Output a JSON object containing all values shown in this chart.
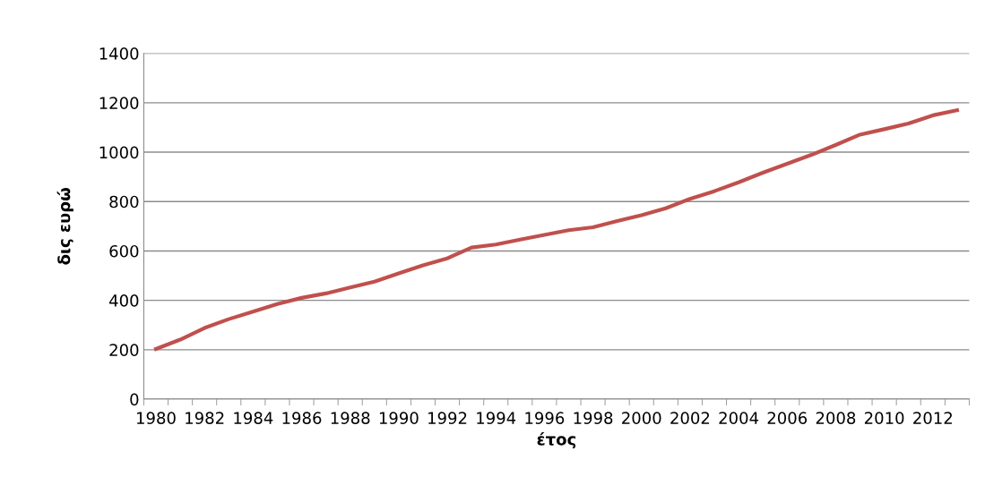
{
  "chart_data": {
    "type": "line",
    "xlabel": "έτος",
    "ylabel": "δις ευρώ",
    "categories": [
      "1980",
      null,
      "1982",
      null,
      "1984",
      null,
      "1986",
      null,
      "1988",
      null,
      "1990",
      null,
      "1992",
      null,
      "1994",
      null,
      "1996",
      null,
      "1998",
      null,
      "2000",
      null,
      "2002",
      null,
      "2004",
      null,
      "2006",
      null,
      "2008",
      null,
      "2010",
      null,
      "2012",
      null
    ],
    "series": [
      {
        "color": "#c0504d",
        "values": [
          203,
          241,
          288,
          324,
          354,
          385,
          410,
          428,
          452,
          476,
          509,
          542,
          570,
          614,
          626,
          646,
          665,
          684,
          696,
          721,
          745,
          773,
          811,
          842,
          878,
          917,
          953,
          989,
          1029,
          1071,
          1093,
          1116,
          1149,
          1170
        ]
      }
    ],
    "ylim": [
      0,
      1400
    ],
    "yticks": [
      0,
      200,
      400,
      600,
      800,
      1000,
      1200,
      1400
    ],
    "grid": "y",
    "marker": "none",
    "line_style": "solid"
  }
}
